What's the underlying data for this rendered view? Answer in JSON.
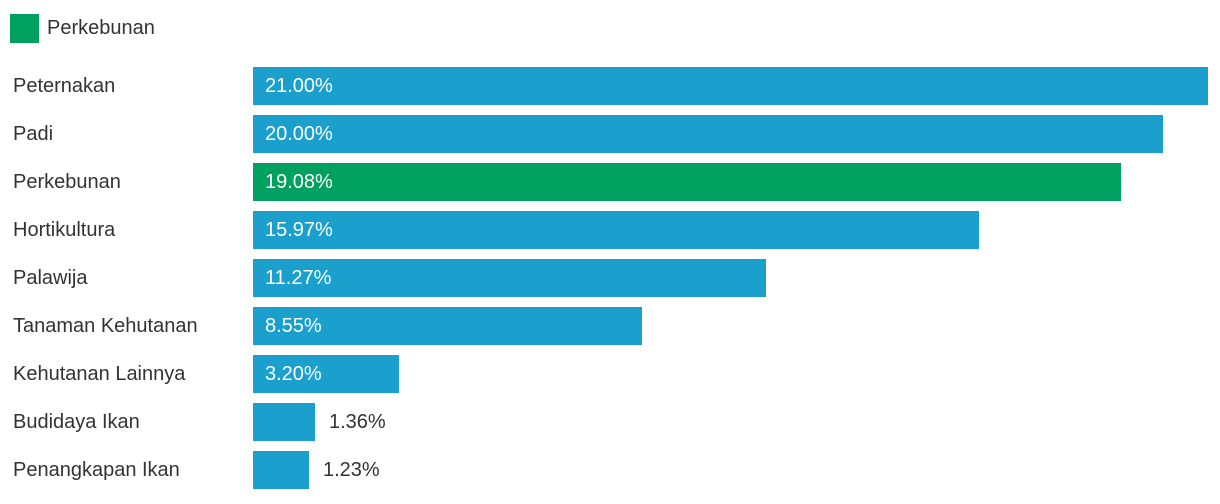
{
  "legend": {
    "items": [
      {
        "label": "Perkebunan",
        "color": "#00A160"
      }
    ]
  },
  "chart_data": {
    "type": "bar",
    "orientation": "horizontal",
    "title": "",
    "xlabel": "",
    "ylabel": "",
    "grid": false,
    "legend_position": "top-left",
    "categories": [
      "Peternakan",
      "Padi",
      "Perkebunan",
      "Hortikultura",
      "Palawija",
      "Tanaman Kehutanan",
      "Kehutanan Lainnya",
      "Budidaya Ikan",
      "Penangkapan Ikan"
    ],
    "values": [
      21.0,
      20.0,
      19.08,
      15.97,
      11.27,
      8.55,
      3.2,
      1.36,
      1.23
    ],
    "value_labels": [
      "21.00%",
      "20.00%",
      "19.08%",
      "15.97%",
      "11.27%",
      "8.55%",
      "3.20%",
      "1.36%",
      "1.23%"
    ],
    "xlim": [
      0,
      21.26
    ],
    "highlight_category": "Perkebunan",
    "bar_color": "#1BA0CE",
    "highlight_color": "#00A160",
    "label_color": "#333333",
    "value_label_inside_color": "#ffffff"
  }
}
